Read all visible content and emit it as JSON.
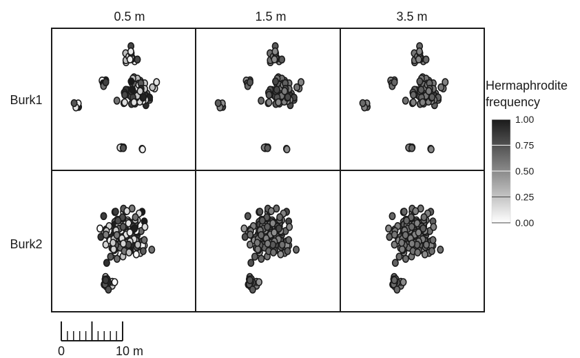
{
  "chart_data": {
    "type": "scatter",
    "title": "",
    "column_labels": [
      "0.5 m",
      "1.5 m",
      "3.5 m"
    ],
    "row_labels": [
      "Burk1",
      "Burk2"
    ],
    "legend": {
      "title_line1": "Hermaphrodite",
      "title_line2": "frequency",
      "ticks": [
        "1.00",
        "0.75",
        "0.50",
        "0.25",
        "0.00"
      ],
      "tick_values": [
        1.0,
        0.75,
        0.5,
        0.25,
        0.0
      ],
      "range": [
        0,
        1
      ],
      "color_low": "#ffffff",
      "color_high": "#1a1a1a",
      "placement": "right"
    },
    "scale_bar": {
      "label_start": "0",
      "label_end": "10 m",
      "length_m": 10
    },
    "note": ""
  }
}
